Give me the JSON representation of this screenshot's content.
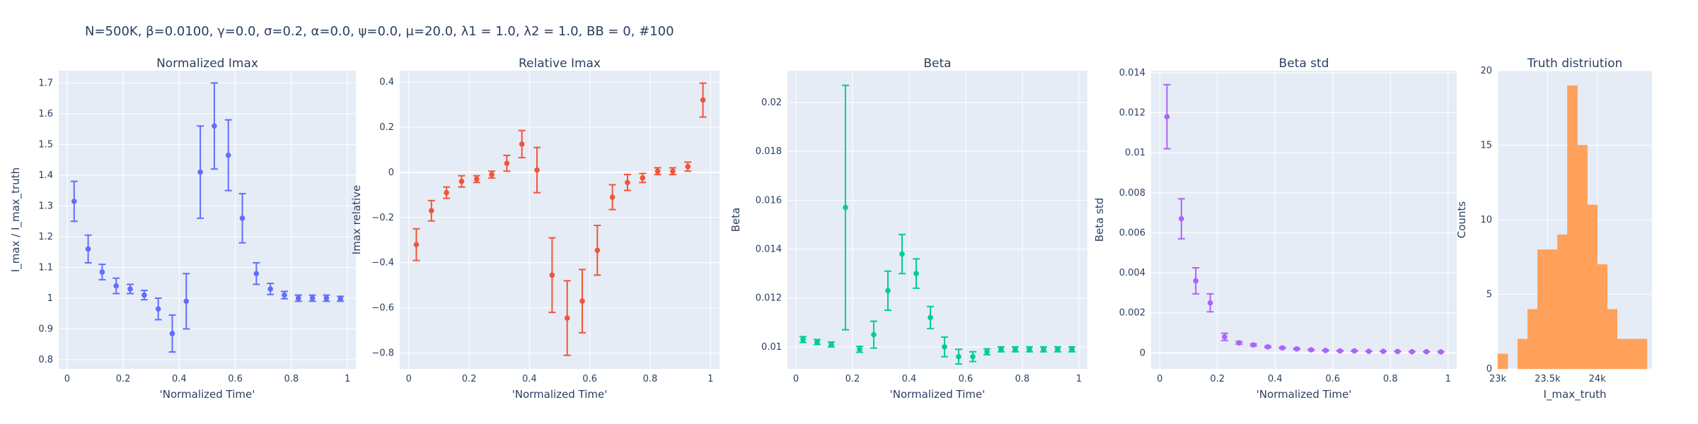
{
  "figure": {
    "suptitle": "N=500K, β=0.0100, γ=0.0, σ=0.2,  α=0.0, ψ=0.0, μ=20.0, λ1 = 1.0, λ2 = 1.0, BB = 0, #100"
  },
  "chart_data": [
    {
      "type": "scatter",
      "title": "Normalized Imax",
      "xlabel": "'Normalized Time'",
      "ylabel": "I_max / I_max_truth",
      "color": "#636efa",
      "xlim": [
        -0.03,
        1.03
      ],
      "ylim": [
        0.77,
        1.74
      ],
      "xticks": [
        0,
        0.2,
        0.4,
        0.6,
        0.8,
        1
      ],
      "xticklabels": [
        "0",
        "0.2",
        "0.4",
        "0.6",
        "0.8",
        "1"
      ],
      "yticks": [
        0.8,
        0.9,
        1.0,
        1.1,
        1.2,
        1.3,
        1.4,
        1.5,
        1.6,
        1.7
      ],
      "yticklabels": [
        "0.8",
        "0.9",
        "1",
        "1.1",
        "1.2",
        "1.3",
        "1.4",
        "1.5",
        "1.6",
        "1.7"
      ],
      "x": [
        0.025,
        0.075,
        0.125,
        0.175,
        0.225,
        0.275,
        0.325,
        0.375,
        0.425,
        0.475,
        0.525,
        0.575,
        0.625,
        0.675,
        0.725,
        0.775,
        0.825,
        0.875,
        0.925,
        0.975
      ],
      "y": [
        1.315,
        1.16,
        1.085,
        1.04,
        1.03,
        1.01,
        0.965,
        0.885,
        0.99,
        1.41,
        1.56,
        1.465,
        1.26,
        1.08,
        1.03,
        1.01,
        1.0,
        1.0,
        1.0,
        0.998
      ],
      "err": [
        0.065,
        0.045,
        0.025,
        0.025,
        0.015,
        0.015,
        0.035,
        0.06,
        0.09,
        0.15,
        0.14,
        0.115,
        0.08,
        0.035,
        0.018,
        0.012,
        0.01,
        0.01,
        0.01,
        0.008
      ]
    },
    {
      "type": "scatter",
      "title": "Relative Imax",
      "xlabel": "'Normalized Time'",
      "ylabel": "Imax relative",
      "color": "#ef553b",
      "xlim": [
        -0.03,
        1.03
      ],
      "ylim": [
        -0.87,
        0.45
      ],
      "xticks": [
        0,
        0.2,
        0.4,
        0.6,
        0.8,
        1
      ],
      "xticklabels": [
        "0",
        "0.2",
        "0.4",
        "0.6",
        "0.8",
        "1"
      ],
      "yticks": [
        -0.8,
        -0.6,
        -0.4,
        -0.2,
        0,
        0.2,
        0.4
      ],
      "yticklabels": [
        "−0.8",
        "−0.6",
        "−0.4",
        "−0.2",
        "0",
        "0.2",
        "0.4"
      ],
      "x": [
        0.025,
        0.075,
        0.125,
        0.175,
        0.225,
        0.275,
        0.325,
        0.375,
        0.425,
        0.475,
        0.525,
        0.575,
        0.625,
        0.675,
        0.725,
        0.775,
        0.825,
        0.875,
        0.925,
        0.975
      ],
      "y": [
        -0.32,
        -0.17,
        -0.09,
        -0.04,
        -0.03,
        -0.01,
        0.04,
        0.125,
        0.01,
        -0.455,
        -0.645,
        -0.57,
        -0.345,
        -0.11,
        -0.045,
        -0.025,
        0.005,
        0.005,
        0.025,
        0.32
      ],
      "err": [
        0.07,
        0.045,
        0.025,
        0.025,
        0.015,
        0.015,
        0.035,
        0.06,
        0.1,
        0.165,
        0.165,
        0.14,
        0.11,
        0.055,
        0.035,
        0.02,
        0.015,
        0.015,
        0.02,
        0.075
      ]
    },
    {
      "type": "scatter",
      "title": "Beta",
      "xlabel": "'Normalized Time'",
      "ylabel": "Beta",
      "color": "#00cc96",
      "xlim": [
        -0.03,
        1.03
      ],
      "ylim": [
        0.0091,
        0.0213
      ],
      "xticks": [
        0,
        0.2,
        0.4,
        0.6,
        0.8,
        1
      ],
      "xticklabels": [
        "0",
        "0.2",
        "0.4",
        "0.6",
        "0.8",
        "1"
      ],
      "yticks": [
        0.01,
        0.012,
        0.014,
        0.016,
        0.018,
        0.02
      ],
      "yticklabels": [
        "0.01",
        "0.012",
        "0.014",
        "0.016",
        "0.018",
        "0.02"
      ],
      "x": [
        0.025,
        0.075,
        0.125,
        0.175,
        0.225,
        0.275,
        0.325,
        0.375,
        0.425,
        0.475,
        0.525,
        0.575,
        0.625,
        0.675,
        0.725,
        0.775,
        0.825,
        0.875,
        0.925,
        0.975
      ],
      "y": [
        0.0103,
        0.0102,
        0.0101,
        0.0157,
        0.0099,
        0.0105,
        0.0123,
        0.0138,
        0.013,
        0.0112,
        0.01,
        0.0096,
        0.0096,
        0.0098,
        0.0099,
        0.0099,
        0.0099,
        0.0099,
        0.0099,
        0.0099
      ],
      "err": [
        0.00012,
        0.0001,
        0.0001,
        0.005,
        0.00012,
        0.00055,
        0.0008,
        0.0008,
        0.0006,
        0.00045,
        0.0004,
        0.0003,
        0.0002,
        0.00012,
        0.0001,
        0.0001,
        0.0001,
        0.0001,
        0.0001,
        0.0001
      ]
    },
    {
      "type": "scatter",
      "title": "Beta std",
      "xlabel": "'Normalized Time'",
      "ylabel": "Beta std",
      "color": "#ab63fa",
      "xlim": [
        -0.03,
        1.03
      ],
      "ylim": [
        -0.0008,
        0.0141
      ],
      "xticks": [
        0,
        0.2,
        0.4,
        0.6,
        0.8,
        1
      ],
      "xticklabels": [
        "0",
        "0.2",
        "0.4",
        "0.6",
        "0.8",
        "1"
      ],
      "yticks": [
        0,
        0.002,
        0.004,
        0.006,
        0.008,
        0.01,
        0.012,
        0.014
      ],
      "yticklabels": [
        "0",
        "0.002",
        "0.004",
        "0.006",
        "0.008",
        "0.01",
        "0.012",
        "0.014"
      ],
      "x": [
        0.025,
        0.075,
        0.125,
        0.175,
        0.225,
        0.275,
        0.325,
        0.375,
        0.425,
        0.475,
        0.525,
        0.575,
        0.625,
        0.675,
        0.725,
        0.775,
        0.825,
        0.875,
        0.925,
        0.975
      ],
      "y": [
        0.0118,
        0.0067,
        0.0036,
        0.0025,
        0.0008,
        0.0005,
        0.0004,
        0.0003,
        0.00025,
        0.0002,
        0.00015,
        0.00012,
        0.0001,
        0.0001,
        8e-05,
        8e-05,
        7e-05,
        6e-05,
        6e-05,
        5e-05
      ],
      "err": [
        0.0016,
        0.001,
        0.00065,
        0.00045,
        0.00018,
        6e-05,
        5e-05,
        4e-05,
        3e-05,
        3e-05,
        2e-05,
        2e-05,
        2e-05,
        2e-05,
        1e-05,
        1e-05,
        1e-05,
        1e-05,
        1e-05,
        1e-05
      ]
    },
    {
      "type": "bar",
      "title": "Truth distriution",
      "xlabel": "I_max_truth",
      "ylabel": "Counts",
      "color": "#ffa15a",
      "xlim": [
        23000,
        24550
      ],
      "ylim": [
        0,
        20
      ],
      "xticks": [
        23000,
        23500,
        24000
      ],
      "xticklabels": [
        "23k",
        "23.5k",
        "24k"
      ],
      "yticks": [
        0,
        5,
        10,
        15,
        20
      ],
      "yticklabels": [
        "0",
        "5",
        "10",
        "15",
        "20"
      ],
      "bins": [
        23000,
        23100,
        23200,
        23300,
        23400,
        23500,
        23600,
        23700,
        23800,
        23900,
        24000,
        24100,
        24200,
        24300,
        24400,
        24500
      ],
      "bin_width": 100,
      "values": [
        1,
        0,
        2,
        4,
        8,
        8,
        9,
        19,
        15,
        11,
        7,
        4,
        2,
        2,
        2,
        0
      ]
    }
  ]
}
